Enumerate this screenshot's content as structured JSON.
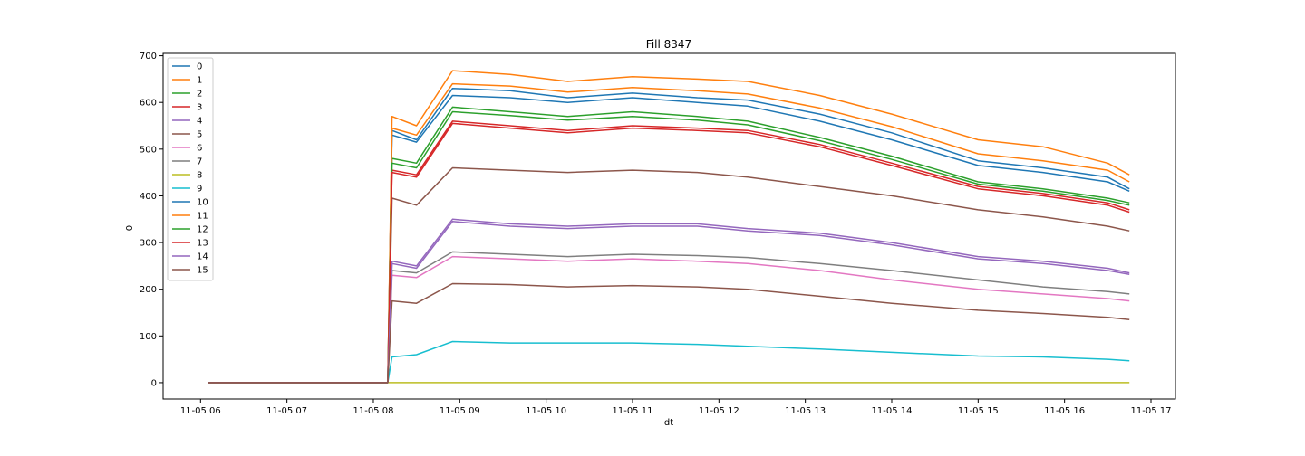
{
  "chart_data": {
    "type": "line",
    "title": "Fill 8347",
    "xlabel": "dt",
    "ylabel": "0",
    "xlim": [
      "2022-11-05 05:34",
      "2022-11-05 17:17"
    ],
    "ylim": [
      -35,
      705
    ],
    "xticks": [
      {
        "t": "2022-11-05 06:00",
        "label": "11-05 06"
      },
      {
        "t": "2022-11-05 07:00",
        "label": "11-05 07"
      },
      {
        "t": "2022-11-05 08:00",
        "label": "11-05 08"
      },
      {
        "t": "2022-11-05 09:00",
        "label": "11-05 09"
      },
      {
        "t": "2022-11-05 10:00",
        "label": "11-05 10"
      },
      {
        "t": "2022-11-05 11:00",
        "label": "11-05 11"
      },
      {
        "t": "2022-11-05 12:00",
        "label": "11-05 12"
      },
      {
        "t": "2022-11-05 13:00",
        "label": "11-05 13"
      },
      {
        "t": "2022-11-05 14:00",
        "label": "11-05 14"
      },
      {
        "t": "2022-11-05 15:00",
        "label": "11-05 15"
      },
      {
        "t": "2022-11-05 16:00",
        "label": "11-05 16"
      },
      {
        "t": "2022-11-05 17:00",
        "label": "11-05 17"
      }
    ],
    "yticks": [
      0,
      100,
      200,
      300,
      400,
      500,
      600,
      700
    ],
    "grid": false,
    "legend": "upper left",
    "x": [
      "2022-11-05 06:05",
      "2022-11-05 08:10",
      "2022-11-05 08:13",
      "2022-11-05 08:30",
      "2022-11-05 08:55",
      "2022-11-05 09:35",
      "2022-11-05 10:15",
      "2022-11-05 11:00",
      "2022-11-05 11:45",
      "2022-11-05 12:20",
      "2022-11-05 13:10",
      "2022-11-05 14:00",
      "2022-11-05 15:00",
      "2022-11-05 15:45",
      "2022-11-05 16:30",
      "2022-11-05 16:45"
    ],
    "series": [
      {
        "name": "0",
        "color": "#1f77b4",
        "values": [
          0,
          0,
          540,
          520,
          630,
          625,
          610,
          620,
          610,
          605,
          575,
          535,
          475,
          460,
          440,
          415
        ]
      },
      {
        "name": "1",
        "color": "#ff7f0e",
        "values": [
          0,
          0,
          570,
          550,
          668,
          660,
          645,
          655,
          650,
          645,
          615,
          575,
          520,
          505,
          470,
          445
        ]
      },
      {
        "name": "2",
        "color": "#2ca02c",
        "values": [
          0,
          0,
          480,
          470,
          590,
          580,
          570,
          580,
          570,
          560,
          525,
          485,
          430,
          415,
          395,
          385
        ]
      },
      {
        "name": "3",
        "color": "#d62728",
        "values": [
          0,
          0,
          455,
          445,
          560,
          550,
          540,
          550,
          545,
          540,
          510,
          470,
          420,
          405,
          385,
          370
        ]
      },
      {
        "name": "4",
        "color": "#9467bd",
        "values": [
          0,
          0,
          260,
          250,
          350,
          340,
          335,
          340,
          340,
          330,
          320,
          300,
          270,
          260,
          245,
          235
        ]
      },
      {
        "name": "5",
        "color": "#8c564b",
        "values": [
          0,
          0,
          395,
          380,
          460,
          455,
          450,
          455,
          450,
          440,
          420,
          400,
          370,
          355,
          335,
          325
        ]
      },
      {
        "name": "6",
        "color": "#e377c2",
        "values": [
          0,
          0,
          230,
          225,
          270,
          265,
          260,
          265,
          260,
          255,
          240,
          220,
          200,
          190,
          180,
          175
        ]
      },
      {
        "name": "7",
        "color": "#7f7f7f",
        "values": [
          0,
          0,
          240,
          235,
          280,
          275,
          270,
          275,
          272,
          268,
          255,
          240,
          220,
          205,
          195,
          190
        ]
      },
      {
        "name": "8",
        "color": "#bcbd22",
        "values": [
          0,
          0,
          0,
          0,
          0,
          0,
          0,
          0,
          0,
          0,
          0,
          0,
          0,
          0,
          0,
          0
        ]
      },
      {
        "name": "9",
        "color": "#17becf",
        "values": [
          0,
          0,
          55,
          60,
          88,
          85,
          85,
          85,
          82,
          78,
          72,
          65,
          57,
          55,
          50,
          47
        ]
      },
      {
        "name": "10",
        "color": "#1f77b4",
        "values": [
          0,
          0,
          530,
          515,
          615,
          610,
          600,
          610,
          600,
          592,
          560,
          520,
          465,
          450,
          430,
          410
        ]
      },
      {
        "name": "11",
        "color": "#ff7f0e",
        "values": [
          0,
          0,
          545,
          530,
          640,
          635,
          622,
          632,
          625,
          618,
          588,
          548,
          490,
          475,
          455,
          430
        ]
      },
      {
        "name": "12",
        "color": "#2ca02c",
        "values": [
          0,
          0,
          470,
          460,
          580,
          572,
          562,
          570,
          562,
          552,
          518,
          478,
          425,
          410,
          390,
          380
        ]
      },
      {
        "name": "13",
        "color": "#d62728",
        "values": [
          0,
          0,
          450,
          440,
          555,
          545,
          535,
          545,
          540,
          535,
          505,
          465,
          415,
          400,
          380,
          365
        ]
      },
      {
        "name": "14",
        "color": "#9467bd",
        "values": [
          0,
          0,
          255,
          245,
          345,
          335,
          330,
          335,
          335,
          325,
          315,
          295,
          265,
          255,
          240,
          232
        ]
      },
      {
        "name": "15",
        "color": "#8c564b",
        "values": [
          0,
          0,
          175,
          170,
          212,
          210,
          205,
          208,
          205,
          200,
          185,
          170,
          155,
          148,
          140,
          135
        ]
      }
    ]
  }
}
